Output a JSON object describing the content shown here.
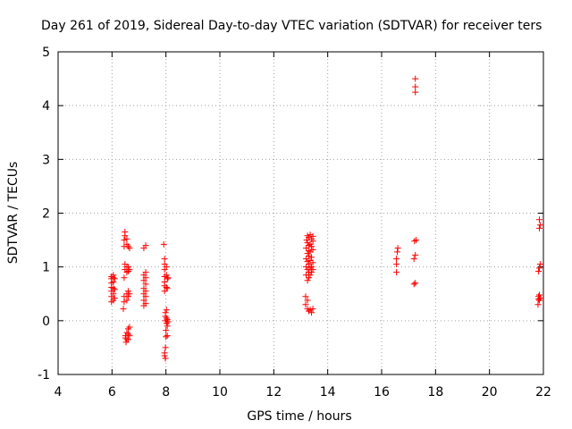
{
  "chart_data": {
    "type": "scatter",
    "title": "Day 261 of 2019, Sidereal Day-to-day VTEC variation (SDTVAR) for receiver ters",
    "xlabel": "GPS time / hours",
    "ylabel": "SDTVAR / TECUs",
    "xlim": [
      4,
      22
    ],
    "ylim": [
      -1,
      5
    ],
    "xticks": [
      4,
      6,
      8,
      10,
      12,
      14,
      16,
      18,
      20,
      22
    ],
    "yticks": [
      -1,
      0,
      1,
      2,
      3,
      4,
      5
    ],
    "grid": true,
    "marker": "+",
    "color": "#ff0000",
    "points": [
      [
        5.98,
        0.35
      ],
      [
        5.98,
        0.45
      ],
      [
        5.98,
        0.55
      ],
      [
        5.98,
        0.62
      ],
      [
        5.98,
        0.7
      ],
      [
        5.98,
        0.78
      ],
      [
        5.98,
        0.82
      ],
      [
        6.05,
        0.38
      ],
      [
        6.05,
        0.5
      ],
      [
        6.05,
        0.6
      ],
      [
        6.05,
        0.72
      ],
      [
        6.05,
        0.8
      ],
      [
        6.05,
        0.85
      ],
      [
        6.1,
        0.42
      ],
      [
        6.1,
        0.58
      ],
      [
        6.1,
        0.78
      ],
      [
        6.42,
        0.22
      ],
      [
        6.45,
        0.35
      ],
      [
        6.45,
        0.45
      ],
      [
        6.45,
        0.8
      ],
      [
        6.48,
        0.95
      ],
      [
        6.48,
        1.05
      ],
      [
        6.45,
        1.38
      ],
      [
        6.45,
        1.5
      ],
      [
        6.48,
        1.58
      ],
      [
        6.48,
        1.65
      ],
      [
        6.5,
        -0.32
      ],
      [
        6.5,
        -0.28
      ],
      [
        6.52,
        -0.4
      ],
      [
        6.55,
        -0.35
      ],
      [
        6.55,
        -0.22
      ],
      [
        6.55,
        0.38
      ],
      [
        6.55,
        0.5
      ],
      [
        6.55,
        0.9
      ],
      [
        6.55,
        1.0
      ],
      [
        6.55,
        1.42
      ],
      [
        6.55,
        1.52
      ],
      [
        6.6,
        -0.35
      ],
      [
        6.6,
        -0.25
      ],
      [
        6.6,
        -0.15
      ],
      [
        6.6,
        0.45
      ],
      [
        6.6,
        0.55
      ],
      [
        6.6,
        0.92
      ],
      [
        6.6,
        1.0
      ],
      [
        6.6,
        1.38
      ],
      [
        6.65,
        -0.28
      ],
      [
        6.65,
        -0.12
      ],
      [
        6.65,
        0.5
      ],
      [
        6.65,
        0.95
      ],
      [
        6.65,
        1.35
      ],
      [
        7.18,
        0.28
      ],
      [
        7.18,
        0.38
      ],
      [
        7.18,
        0.5
      ],
      [
        7.18,
        0.6
      ],
      [
        7.18,
        0.75
      ],
      [
        7.18,
        0.85
      ],
      [
        7.18,
        1.35
      ],
      [
        7.25,
        0.32
      ],
      [
        7.25,
        0.45
      ],
      [
        7.25,
        0.55
      ],
      [
        7.25,
        0.68
      ],
      [
        7.25,
        0.8
      ],
      [
        7.25,
        0.9
      ],
      [
        7.25,
        1.4
      ],
      [
        7.92,
        1.42
      ],
      [
        7.95,
        0.55
      ],
      [
        7.95,
        0.65
      ],
      [
        7.95,
        0.72
      ],
      [
        7.95,
        0.82
      ],
      [
        7.95,
        0.95
      ],
      [
        7.95,
        1.05
      ],
      [
        7.95,
        1.15
      ],
      [
        7.95,
        -0.65
      ],
      [
        7.95,
        -0.6
      ],
      [
        7.98,
        -0.7
      ],
      [
        7.98,
        -0.5
      ],
      [
        7.98,
        0.0
      ],
      [
        7.98,
        0.08
      ],
      [
        7.98,
        0.15
      ],
      [
        8.0,
        -0.3
      ],
      [
        8.0,
        -0.18
      ],
      [
        8.02,
        -0.05
      ],
      [
        8.02,
        0.05
      ],
      [
        8.02,
        0.2
      ],
      [
        8.02,
        0.62
      ],
      [
        8.02,
        0.85
      ],
      [
        8.02,
        1.0
      ],
      [
        8.05,
        -0.28
      ],
      [
        8.05,
        -0.1
      ],
      [
        8.05,
        0.02
      ],
      [
        8.05,
        0.6
      ],
      [
        8.05,
        0.78
      ],
      [
        8.08,
        0.8
      ],
      [
        8.08,
        -0.02
      ],
      [
        13.18,
        0.3
      ],
      [
        13.18,
        0.45
      ],
      [
        13.2,
        0.85
      ],
      [
        13.2,
        1.0
      ],
      [
        13.2,
        1.15
      ],
      [
        13.2,
        1.35
      ],
      [
        13.22,
        1.5
      ],
      [
        13.25,
        0.22
      ],
      [
        13.25,
        0.38
      ],
      [
        13.25,
        0.75
      ],
      [
        13.25,
        0.95
      ],
      [
        13.25,
        1.1
      ],
      [
        13.25,
        1.25
      ],
      [
        13.25,
        1.45
      ],
      [
        13.25,
        1.58
      ],
      [
        13.3,
        0.18
      ],
      [
        13.3,
        0.8
      ],
      [
        13.3,
        0.9
      ],
      [
        13.3,
        1.05
      ],
      [
        13.3,
        1.2
      ],
      [
        13.3,
        1.3
      ],
      [
        13.3,
        1.4
      ],
      [
        13.3,
        1.55
      ],
      [
        13.35,
        0.2
      ],
      [
        13.35,
        0.85
      ],
      [
        13.35,
        0.98
      ],
      [
        13.35,
        1.12
      ],
      [
        13.35,
        1.28
      ],
      [
        13.35,
        1.42
      ],
      [
        13.35,
        1.6
      ],
      [
        13.4,
        0.15
      ],
      [
        13.4,
        0.9
      ],
      [
        13.4,
        1.0
      ],
      [
        13.4,
        1.18
      ],
      [
        13.4,
        1.38
      ],
      [
        13.4,
        1.52
      ],
      [
        13.45,
        0.22
      ],
      [
        13.45,
        0.95
      ],
      [
        13.45,
        1.08
      ],
      [
        13.45,
        1.32
      ],
      [
        13.45,
        1.48
      ],
      [
        13.45,
        1.57
      ],
      [
        16.55,
        0.9
      ],
      [
        16.55,
        1.05
      ],
      [
        16.55,
        1.15
      ],
      [
        16.58,
        1.28
      ],
      [
        16.6,
        1.35
      ],
      [
        17.2,
        0.68
      ],
      [
        17.25,
        0.7
      ],
      [
        17.2,
        1.15
      ],
      [
        17.25,
        1.22
      ],
      [
        17.22,
        1.48
      ],
      [
        17.28,
        1.5
      ],
      [
        17.25,
        4.25
      ],
      [
        17.25,
        4.35
      ],
      [
        17.25,
        4.5
      ],
      [
        21.8,
        0.3
      ],
      [
        21.82,
        0.4
      ],
      [
        21.82,
        0.45
      ],
      [
        21.85,
        0.38
      ],
      [
        21.85,
        0.48
      ],
      [
        21.88,
        0.42
      ],
      [
        21.82,
        0.92
      ],
      [
        21.85,
        0.98
      ],
      [
        21.88,
        1.05
      ],
      [
        21.85,
        1.72
      ],
      [
        21.88,
        1.78
      ],
      [
        21.85,
        1.88
      ]
    ]
  }
}
